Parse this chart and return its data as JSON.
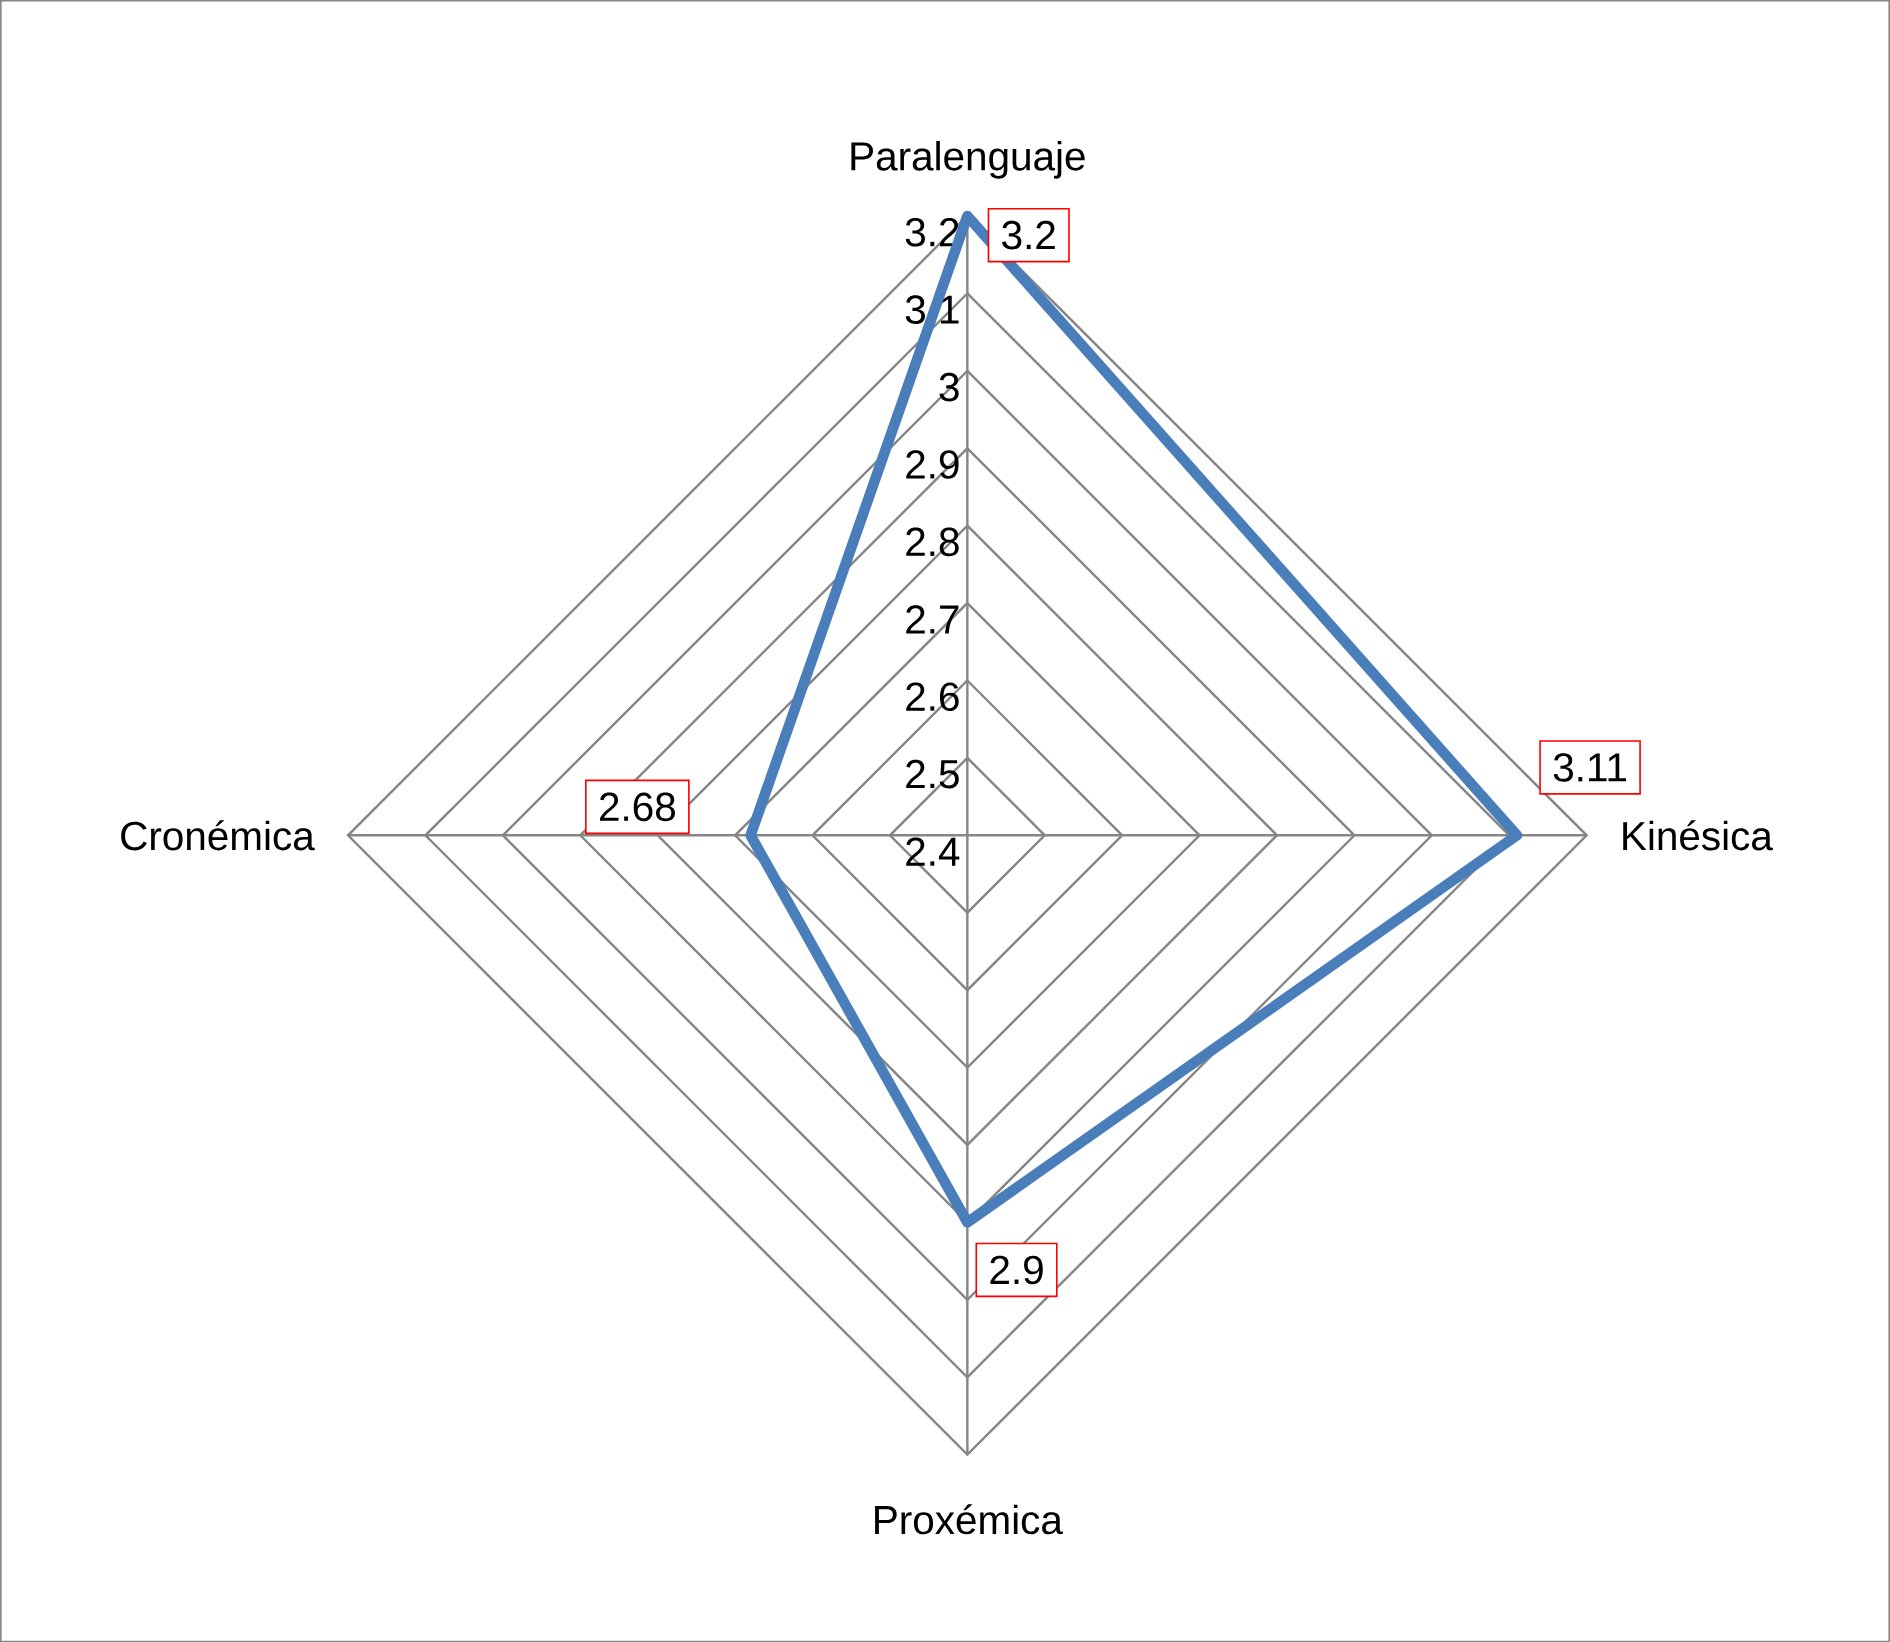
{
  "chart_data": {
    "type": "radar",
    "categories": [
      "Paralenguaje",
      "Kinésica",
      "Proxémica",
      "Cronémica"
    ],
    "series": [
      {
        "color": "#4a7ebb",
        "values": [
          3.2,
          3.11,
          2.9,
          2.68
        ]
      }
    ],
    "ylim": [
      2.4,
      3.2
    ],
    "yticks": [
      2.4,
      2.5,
      2.6,
      2.7,
      2.8,
      2.9,
      3,
      3.1,
      3.2
    ],
    "grid": true,
    "data_labels": true
  }
}
